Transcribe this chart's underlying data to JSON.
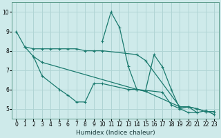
{
  "xlabel": "Humidex (Indice chaleur)",
  "ylabel": "",
  "bg_color": "#ceeaea",
  "grid_color": "#b0d4d4",
  "line_color": "#1a7a6e",
  "xlim": [
    -0.5,
    23.5
  ],
  "ylim": [
    4.5,
    10.5
  ],
  "xticks": [
    0,
    1,
    2,
    3,
    4,
    5,
    6,
    7,
    8,
    9,
    10,
    11,
    12,
    13,
    14,
    15,
    16,
    17,
    18,
    19,
    20,
    21,
    22,
    23
  ],
  "yticks": [
    5,
    6,
    7,
    8,
    9,
    10
  ],
  "series": [
    {
      "x": [
        0,
        1,
        2,
        3,
        4,
        5,
        6,
        7,
        8,
        9,
        10,
        14,
        15,
        19,
        20,
        21,
        22,
        23
      ],
      "y": [
        9.0,
        8.2,
        8.1,
        8.1,
        8.1,
        8.1,
        8.1,
        8.1,
        8.0,
        8.0,
        8.0,
        7.8,
        7.5,
        5.1,
        5.1,
        5.0,
        4.85,
        4.85
      ]
    },
    {
      "x": [
        1,
        2,
        3,
        14,
        17,
        18,
        19,
        20,
        21,
        22,
        23
      ],
      "y": [
        8.2,
        7.7,
        7.4,
        6.0,
        5.85,
        5.2,
        5.0,
        5.1,
        4.8,
        4.9,
        4.7
      ]
    },
    {
      "x": [
        2,
        3,
        5,
        6,
        7,
        8,
        9,
        10,
        13,
        14,
        15,
        19,
        20,
        21,
        22,
        23
      ],
      "y": [
        7.7,
        6.7,
        6.0,
        5.7,
        5.35,
        5.35,
        6.3,
        6.3,
        6.0,
        6.0,
        5.9,
        5.1,
        5.1,
        5.0,
        4.85,
        4.85
      ]
    },
    {
      "x": [
        10,
        11,
        12,
        13,
        14,
        15,
        16,
        17,
        18,
        19,
        20,
        21
      ],
      "y": [
        8.5,
        10.0,
        9.2,
        7.2,
        6.0,
        5.9,
        7.8,
        7.15,
        6.0,
        5.0,
        4.8,
        4.8
      ]
    }
  ]
}
